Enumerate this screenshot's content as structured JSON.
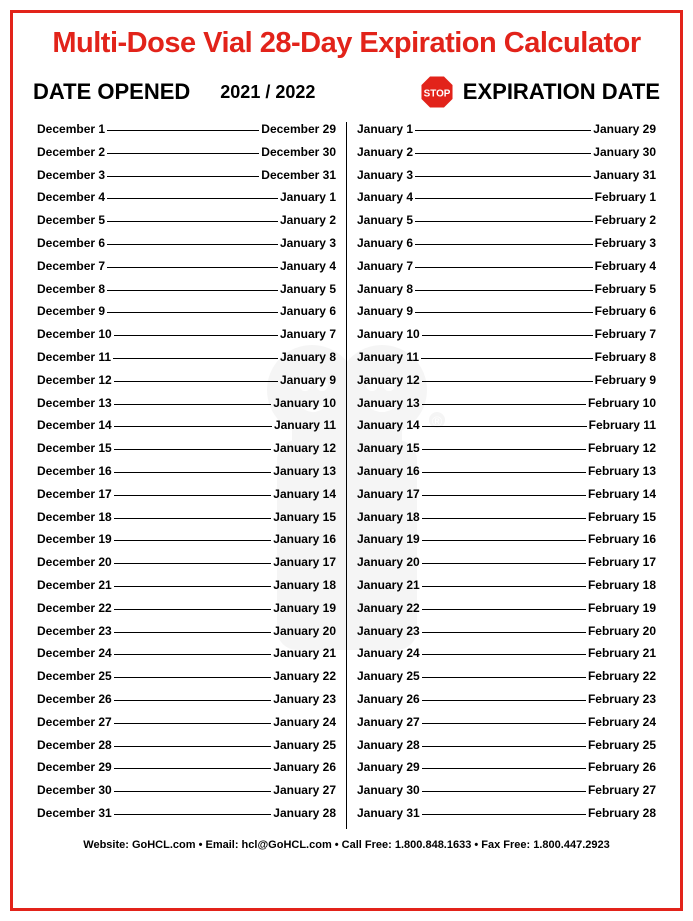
{
  "title": "Multi-Dose Vial 28-Day Expiration Calculator",
  "header": {
    "opened_label": "DATE OPENED",
    "year_range": "2021 / 2022",
    "stop_label": "STOP",
    "expiration_label": "EXPIRATION DATE"
  },
  "colors": {
    "accent": "#e2231a",
    "text": "#000000",
    "background": "#ffffff"
  },
  "left_column": [
    {
      "open": "December 1",
      "exp": "December 29"
    },
    {
      "open": "December 2",
      "exp": "December 30"
    },
    {
      "open": "December 3",
      "exp": "December 31"
    },
    {
      "open": "December 4",
      "exp": "January 1"
    },
    {
      "open": "December 5",
      "exp": "January 2"
    },
    {
      "open": "December 6",
      "exp": "January 3"
    },
    {
      "open": "December 7",
      "exp": "January 4"
    },
    {
      "open": "December 8",
      "exp": "January 5"
    },
    {
      "open": "December 9",
      "exp": "January 6"
    },
    {
      "open": "December 10",
      "exp": "January 7"
    },
    {
      "open": "December 11",
      "exp": "January 8"
    },
    {
      "open": "December 12",
      "exp": "January 9"
    },
    {
      "open": "December 13",
      "exp": "January 10"
    },
    {
      "open": "December 14",
      "exp": "January 11"
    },
    {
      "open": "December 15",
      "exp": "January 12"
    },
    {
      "open": "December 16",
      "exp": "January 13"
    },
    {
      "open": "December 17",
      "exp": "January 14"
    },
    {
      "open": "December 18",
      "exp": "January 15"
    },
    {
      "open": "December 19",
      "exp": "January 16"
    },
    {
      "open": "December 20",
      "exp": "January 17"
    },
    {
      "open": "December 21",
      "exp": "January 18"
    },
    {
      "open": "December 22",
      "exp": "January 19"
    },
    {
      "open": "December 23",
      "exp": "January 20"
    },
    {
      "open": "December 24",
      "exp": "January 21"
    },
    {
      "open": "December 25",
      "exp": "January 22"
    },
    {
      "open": "December 26",
      "exp": "January 23"
    },
    {
      "open": "December 27",
      "exp": "January 24"
    },
    {
      "open": "December 28",
      "exp": "January 25"
    },
    {
      "open": "December 29",
      "exp": "January 26"
    },
    {
      "open": "December 30",
      "exp": "January 27"
    },
    {
      "open": "December 31",
      "exp": "January 28"
    }
  ],
  "right_column": [
    {
      "open": "January 1",
      "exp": "January 29"
    },
    {
      "open": "January 2",
      "exp": "January 30"
    },
    {
      "open": "January 3",
      "exp": "January 31"
    },
    {
      "open": "January 4",
      "exp": "February 1"
    },
    {
      "open": "January 5",
      "exp": "February 2"
    },
    {
      "open": "January 6",
      "exp": "February 3"
    },
    {
      "open": "January 7",
      "exp": "February 4"
    },
    {
      "open": "January 8",
      "exp": "February 5"
    },
    {
      "open": "January 9",
      "exp": "February 6"
    },
    {
      "open": "January 10",
      "exp": "February 7"
    },
    {
      "open": "January 11",
      "exp": "February 8"
    },
    {
      "open": "January 12",
      "exp": "February 9"
    },
    {
      "open": "January 13",
      "exp": "February 10"
    },
    {
      "open": "January 14",
      "exp": "February 11"
    },
    {
      "open": "January 15",
      "exp": "February 12"
    },
    {
      "open": "January 16",
      "exp": "February 13"
    },
    {
      "open": "January 17",
      "exp": "February 14"
    },
    {
      "open": "January 18",
      "exp": "February 15"
    },
    {
      "open": "January 19",
      "exp": "February 16"
    },
    {
      "open": "January 20",
      "exp": "February 17"
    },
    {
      "open": "January 21",
      "exp": "February 18"
    },
    {
      "open": "January 22",
      "exp": "February 19"
    },
    {
      "open": "January 23",
      "exp": "February 20"
    },
    {
      "open": "January 24",
      "exp": "February 21"
    },
    {
      "open": "January 25",
      "exp": "February 22"
    },
    {
      "open": "January 26",
      "exp": "February 23"
    },
    {
      "open": "January 27",
      "exp": "February 24"
    },
    {
      "open": "January 28",
      "exp": "February 25"
    },
    {
      "open": "January 29",
      "exp": "February 26"
    },
    {
      "open": "January 30",
      "exp": "February 27"
    },
    {
      "open": "January 31",
      "exp": "February 28"
    }
  ],
  "footer": "Website: GoHCL.com • Email: hcl@GoHCL.com • Call Free: 1.800.848.1633 • Fax Free: 1.800.447.2923"
}
